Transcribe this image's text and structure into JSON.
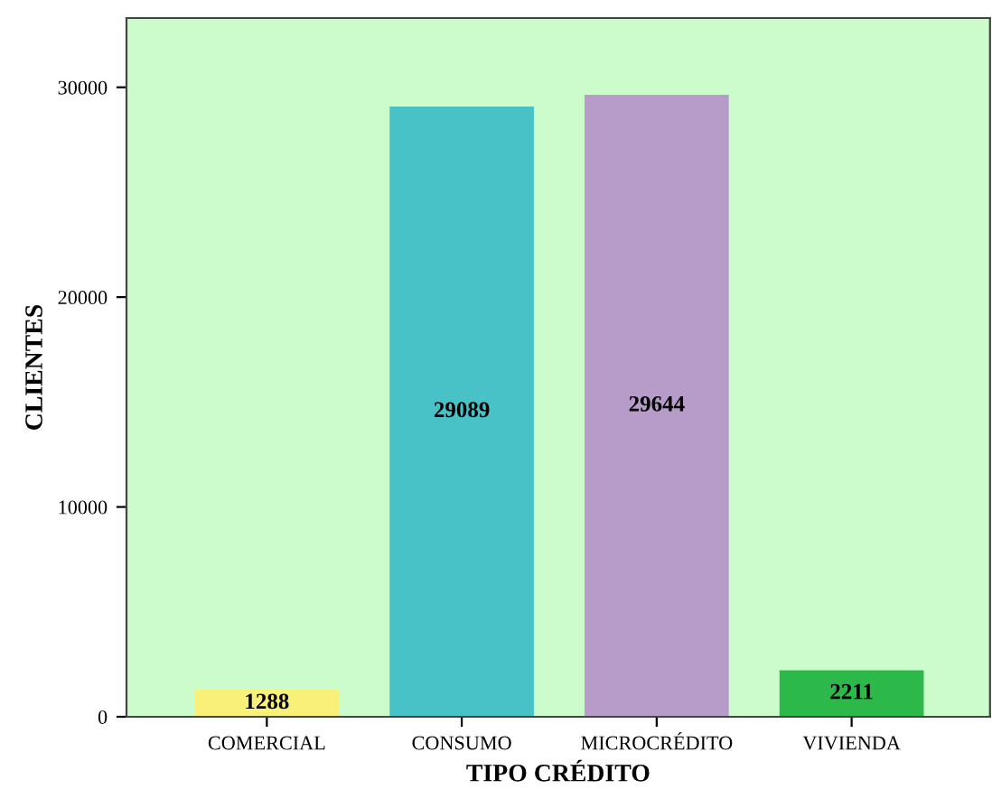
{
  "chart_data": {
    "type": "bar",
    "xlabel": "TIPO CRÉDITO",
    "ylabel": "CLIENTES",
    "categories": [
      "COMERCIAL",
      "CONSUMO",
      "MICROCRÉDITO",
      "VIVIENDA"
    ],
    "values": [
      1288,
      29089,
      29644,
      2211
    ],
    "colors": [
      "#f9f07a",
      "#48c2c6",
      "#b79cc9",
      "#2db84a"
    ],
    "ylim": [
      0,
      33300
    ],
    "yticks": [
      0,
      10000,
      20000,
      30000
    ],
    "grid": false,
    "data_labels": true
  }
}
